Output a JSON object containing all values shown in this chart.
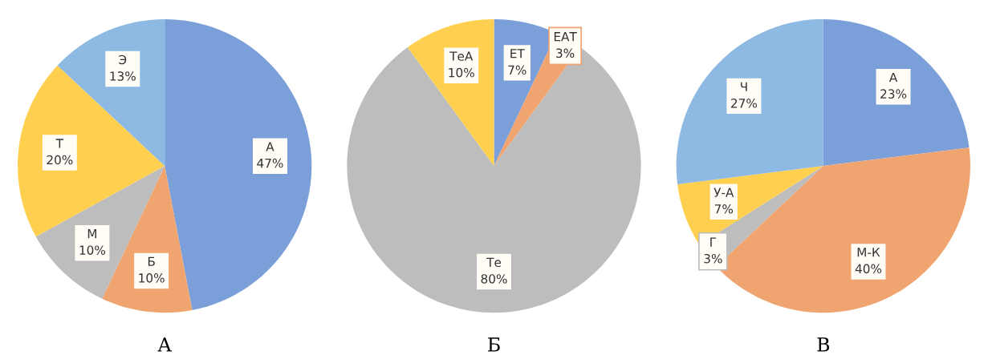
{
  "chart_data": [
    {
      "type": "pie",
      "title": "А",
      "categories": [
        "А",
        "Б",
        "М",
        "Т",
        "Э"
      ],
      "values": [
        47,
        10,
        10,
        20,
        13
      ],
      "value_labels": [
        "47%",
        "10%",
        "10%",
        "20%",
        "13%"
      ],
      "colors": [
        "#7b9fd9",
        "#f0a46f",
        "#bdbdbd",
        "#ffd04f",
        "#8db9e2"
      ]
    },
    {
      "type": "pie",
      "title": "Б",
      "categories": [
        "ЕТ",
        "ЕАТ",
        "Те",
        "ТеА"
      ],
      "values": [
        7,
        3,
        80,
        10
      ],
      "value_labels": [
        "7%",
        "3%",
        "80%",
        "10%"
      ],
      "colors": [
        "#7b9fd9",
        "#f0a46f",
        "#bdbdbd",
        "#ffd04f"
      ]
    },
    {
      "type": "pie",
      "title": "В",
      "categories": [
        "А",
        "М-К",
        "Г",
        "У-А",
        "Ч"
      ],
      "values": [
        23,
        40,
        3,
        7,
        27
      ],
      "value_labels": [
        "23%",
        "40%",
        "3%",
        "7%",
        "27%"
      ],
      "colors": [
        "#7b9fd9",
        "#f0a46f",
        "#bdbdbd",
        "#ffd04f",
        "#8db9e2"
      ]
    }
  ]
}
